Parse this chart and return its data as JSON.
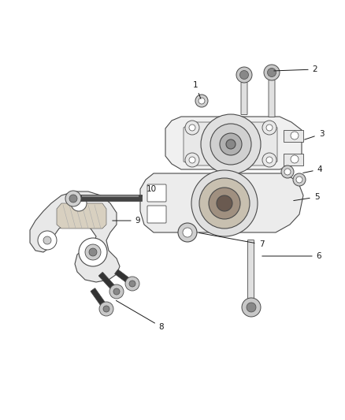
{
  "bg_color": "#ffffff",
  "line_color": "#4a4a4a",
  "dark_color": "#1a1a1a",
  "fill_light": "#f5f5f5",
  "fill_bracket": "#e8e8e8",
  "fill_dark_part": "#aaaaaa",
  "fill_rubber": "#888888",
  "bolt_dark": "#222222",
  "bolt_shaft": "#555555",
  "figsize": [
    4.38,
    5.33
  ],
  "dpi": 100
}
